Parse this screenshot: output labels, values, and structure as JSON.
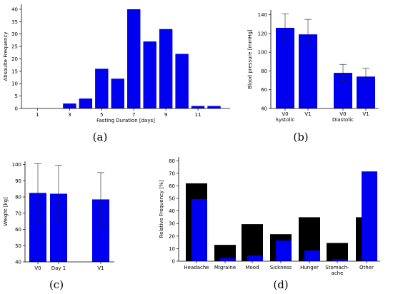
{
  "panels": [
    "(a)",
    "(b)",
    "(c)",
    "(d)"
  ],
  "colors": {
    "bar": "#0000f0",
    "dark": "#000000",
    "axis": "#000000"
  },
  "chart_data": [
    {
      "id": "a",
      "type": "bar",
      "title": "",
      "xlabel": "Fasting Duration [days]",
      "ylabel": "Absoulte Frequency",
      "x": [
        3,
        4,
        5,
        6,
        7,
        8,
        9,
        10,
        11,
        12
      ],
      "values": [
        2,
        4,
        16,
        12,
        40,
        27,
        32,
        22,
        1,
        1
      ],
      "xticks": [
        1,
        3,
        5,
        7,
        9,
        11
      ],
      "yticks": [
        0,
        5,
        10,
        15,
        20,
        25,
        30,
        35,
        40
      ],
      "xlim": [
        0,
        13
      ],
      "ylim": [
        0,
        42
      ]
    },
    {
      "id": "b",
      "type": "bar",
      "title": "",
      "ylabel": "Blood pressure [mmHg]",
      "categories": [
        "V0",
        "V1",
        "V0",
        "V1"
      ],
      "groups": [
        "Systolic",
        "",
        "Diastolic",
        ""
      ],
      "values": [
        126,
        119,
        78,
        74
      ],
      "err_low": [
        14,
        12,
        8,
        7
      ],
      "err_high": [
        15,
        16,
        9,
        9
      ],
      "yticks": [
        40,
        60,
        80,
        100,
        120,
        140
      ],
      "ylim": [
        40,
        145
      ]
    },
    {
      "id": "c",
      "type": "bar",
      "title": "",
      "ylabel": "Weight [kg]",
      "categories": [
        "V0",
        "Day 1",
        "V1"
      ],
      "values": [
        82.5,
        82,
        78.5
      ],
      "err_low": [
        17,
        17,
        17
      ],
      "err_high": [
        18,
        17.5,
        16.5
      ],
      "yticks": [
        40,
        50,
        60,
        70,
        80,
        90,
        100
      ],
      "ylim": [
        40,
        102
      ]
    },
    {
      "id": "d",
      "type": "bar",
      "title": "",
      "ylabel": "Relative Frequency [%]",
      "categories": [
        "Headache",
        "Migraine",
        "Mood",
        "Sickness",
        "Hunger",
        "Stomach-ache",
        "Other"
      ],
      "category_lines": [
        [
          "Headache"
        ],
        [
          "Migraine"
        ],
        [
          "Mood"
        ],
        [
          "Sickness"
        ],
        [
          "Hunger"
        ],
        [
          "Stomach-",
          "ache"
        ],
        [
          "Other"
        ]
      ],
      "series": [
        {
          "values": [
            62,
            13,
            29.5,
            21.5,
            35,
            14.5,
            35
          ]
        },
        {
          "values": [
            49.5,
            2.5,
            4.5,
            16.5,
            8.5,
            1.5,
            71.5
          ]
        }
      ],
      "yticks": [
        0,
        10,
        20,
        30,
        40,
        50,
        60,
        70,
        80
      ],
      "ylim": [
        0,
        83
      ]
    }
  ]
}
